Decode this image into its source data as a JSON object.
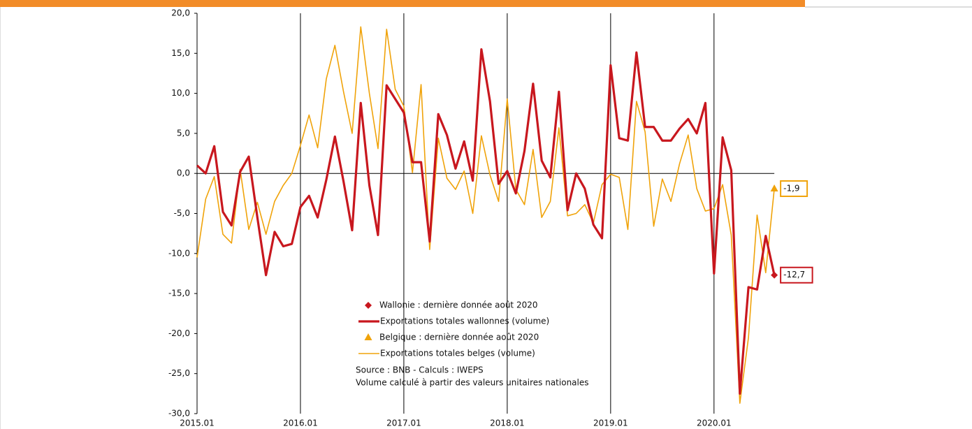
{
  "chart_data": {
    "type": "line",
    "categories": [
      "2015.01",
      null,
      null,
      null,
      null,
      null,
      null,
      null,
      null,
      null,
      null,
      null,
      "2016.01",
      null,
      null,
      null,
      null,
      null,
      null,
      null,
      null,
      null,
      null,
      null,
      "2017.01",
      null,
      null,
      null,
      null,
      null,
      null,
      null,
      null,
      null,
      null,
      null,
      "2018.01",
      null,
      null,
      null,
      null,
      null,
      null,
      null,
      null,
      null,
      null,
      null,
      "2019.01",
      null,
      null,
      null,
      null,
      null,
      null,
      null,
      null,
      null,
      null,
      null,
      "2020.01",
      null,
      null,
      null,
      null,
      null,
      null,
      null
    ],
    "ylim": [
      -30,
      20
    ],
    "yticks": [
      {
        "value": -30,
        "label": "-30,0"
      },
      {
        "value": -25,
        "label": "-25,0"
      },
      {
        "value": -20,
        "label": "-20,0"
      },
      {
        "value": -15,
        "label": "-15,0"
      },
      {
        "value": -10,
        "label": "-10,0"
      },
      {
        "value": -5,
        "label": "-5,0"
      },
      {
        "value": 0,
        "label": "0,0"
      },
      {
        "value": 5,
        "label": "5,0"
      },
      {
        "value": 10,
        "label": "10,0"
      },
      {
        "value": 15,
        "label": "15,0"
      },
      {
        "value": 20,
        "label": "20,0"
      }
    ],
    "series": [
      {
        "name": "Wallonie : dernière donnée août 2020",
        "color": "#c8171e",
        "marker": "diamond",
        "values": [
          null,
          null,
          null,
          null,
          null,
          null,
          null,
          null,
          null,
          null,
          null,
          null,
          null,
          null,
          null,
          null,
          null,
          null,
          null,
          null,
          null,
          null,
          null,
          null,
          null,
          null,
          null,
          null,
          null,
          null,
          null,
          null,
          null,
          null,
          null,
          null,
          null,
          null,
          null,
          null,
          null,
          null,
          null,
          null,
          null,
          null,
          null,
          null,
          null,
          null,
          null,
          null,
          null,
          null,
          null,
          null,
          null,
          null,
          null,
          null,
          null,
          null,
          null,
          null,
          null,
          null,
          null,
          -12.7
        ],
        "value_labels": [
          null,
          null,
          null,
          null,
          null,
          null,
          null,
          null,
          null,
          null,
          null,
          null,
          null,
          null,
          null,
          null,
          null,
          null,
          null,
          null,
          null,
          null,
          null,
          null,
          null,
          null,
          null,
          null,
          null,
          null,
          null,
          null,
          null,
          null,
          null,
          null,
          null,
          null,
          null,
          null,
          null,
          null,
          null,
          null,
          null,
          null,
          null,
          null,
          null,
          null,
          null,
          null,
          null,
          null,
          null,
          null,
          null,
          null,
          null,
          null,
          null,
          null,
          null,
          null,
          null,
          null,
          null,
          "-12,7"
        ]
      },
      {
        "name": "Exportations totales wallonnes (volume)",
        "color": "#c8171e",
        "values": [
          1.0,
          0.0,
          3.4,
          -4.8,
          -6.5,
          0.2,
          2.1,
          -5.5,
          -12.7,
          -7.3,
          -9.1,
          -8.8,
          -4.2,
          -2.8,
          -5.5,
          -0.8,
          4.6,
          -1.0,
          -7.1,
          8.8,
          -1.5,
          -7.7,
          11.0,
          9.3,
          7.6,
          1.4,
          1.4,
          -8.5,
          7.4,
          4.8,
          0.6,
          4.0,
          -0.9,
          15.5,
          9.0,
          -1.3,
          0.3,
          -2.5,
          2.8,
          11.2,
          1.6,
          -0.5,
          10.2,
          -4.6,
          0.0,
          -1.9,
          -6.4,
          -8.1,
          13.5,
          4.4,
          4.1,
          15.1,
          5.8,
          5.8,
          4.1,
          4.1,
          5.6,
          6.8,
          5.0,
          8.8,
          -12.5,
          4.5,
          0.4,
          -27.5,
          -14.2,
          -14.5,
          -7.8,
          -12.7
        ]
      },
      {
        "name": "Belgique : dernière donnée août 2020",
        "color": "#f0a30a",
        "marker": "triangle",
        "values": [
          null,
          null,
          null,
          null,
          null,
          null,
          null,
          null,
          null,
          null,
          null,
          null,
          null,
          null,
          null,
          null,
          null,
          null,
          null,
          null,
          null,
          null,
          null,
          null,
          null,
          null,
          null,
          null,
          null,
          null,
          null,
          null,
          null,
          null,
          null,
          null,
          null,
          null,
          null,
          null,
          null,
          null,
          null,
          null,
          null,
          null,
          null,
          null,
          null,
          null,
          null,
          null,
          null,
          null,
          null,
          null,
          null,
          null,
          null,
          null,
          null,
          null,
          null,
          null,
          null,
          null,
          null,
          -1.9
        ],
        "value_labels": [
          null,
          null,
          null,
          null,
          null,
          null,
          null,
          null,
          null,
          null,
          null,
          null,
          null,
          null,
          null,
          null,
          null,
          null,
          null,
          null,
          null,
          null,
          null,
          null,
          null,
          null,
          null,
          null,
          null,
          null,
          null,
          null,
          null,
          null,
          null,
          null,
          null,
          null,
          null,
          null,
          null,
          null,
          null,
          null,
          null,
          null,
          null,
          null,
          null,
          null,
          null,
          null,
          null,
          null,
          null,
          null,
          null,
          null,
          null,
          null,
          null,
          null,
          null,
          null,
          null,
          null,
          null,
          "-1,9"
        ]
      },
      {
        "name": "Exportations totales belges (volume)",
        "color": "#f0a30a",
        "values": [
          -10.5,
          -3.2,
          -0.4,
          -7.6,
          -8.7,
          0.5,
          -7.0,
          -3.6,
          -7.6,
          -3.5,
          -1.5,
          0.0,
          3.5,
          7.3,
          3.2,
          11.8,
          16.0,
          10.2,
          5.0,
          18.3,
          10.0,
          3.1,
          18.0,
          10.5,
          8.4,
          0.1,
          11.1,
          -9.5,
          4.4,
          -0.6,
          -2.0,
          0.3,
          -5.0,
          4.7,
          -0.2,
          -3.5,
          9.3,
          -2.0,
          -3.9,
          3.0,
          -5.5,
          -3.5,
          5.7,
          -5.3,
          -5.0,
          -3.9,
          -6.2,
          -1.4,
          -0.1,
          -0.5,
          -7.0,
          9.0,
          5.2,
          -6.6,
          -0.7,
          -3.5,
          1.2,
          4.8,
          -1.9,
          -4.7,
          -4.4,
          -1.4,
          -7.7,
          -28.7,
          -20.5,
          -5.2,
          -12.4,
          -1.9
        ]
      }
    ],
    "annotations": [
      "Source : BNB - Calculs : IWEPS",
      "Volume calculé à partir des valeurs unitaires nationales"
    ]
  }
}
